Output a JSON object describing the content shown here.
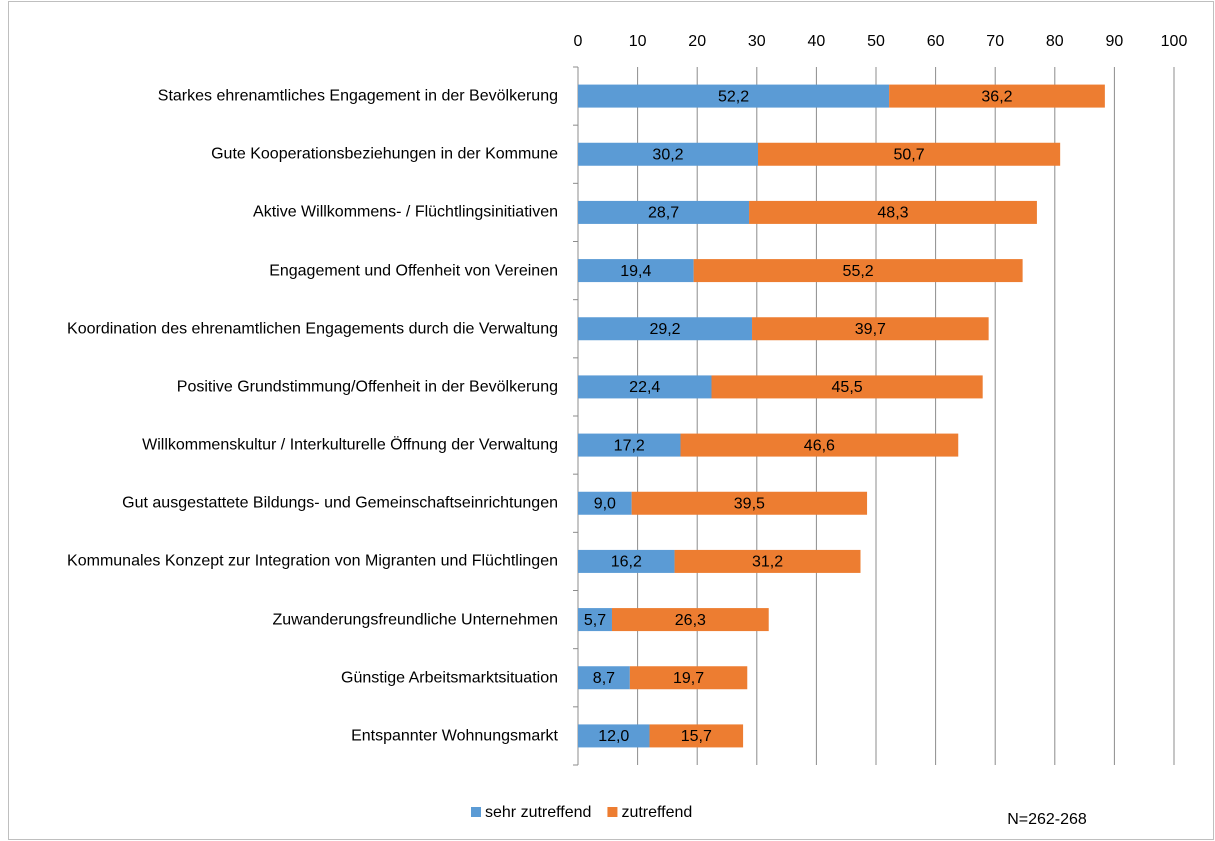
{
  "chart_data": {
    "type": "stacked_barh",
    "categories": [
      "Starkes ehrenamtliches Engagement in der Bevölkerung",
      "Gute Kooperationsbeziehungen in der Kommune",
      "Aktive Willkommens- / Flüchtlingsinitiativen",
      "Engagement und Offenheit von Vereinen",
      "Koordination des ehrenamtlichen Engagements durch die Verwaltung",
      "Positive Grundstimmung/Offenheit in der Bevölkerung",
      "Willkommenskultur / Interkulturelle Öffnung der Verwaltung",
      "Gut ausgestattete Bildungs- und Gemeinschaftseinrichtungen",
      "Kommunales Konzept zur Integration von Migranten und Flüchtlingen",
      "Zuwanderungsfreundliche Unternehmen",
      "Günstige Arbeitsmarktsituation",
      "Entspannter Wohnungsmarkt"
    ],
    "series": [
      {
        "name": "sehr zutreffend",
        "color": "#5b9bd5",
        "values": [
          52.2,
          30.2,
          28.7,
          19.4,
          29.2,
          22.4,
          17.2,
          9.0,
          16.2,
          5.7,
          8.7,
          12.0
        ],
        "value_labels": [
          "52,2",
          "30,2",
          "28,7",
          "19,4",
          "29,2",
          "22,4",
          "17,2",
          "9,0",
          "16,2",
          "5,7",
          "8,7",
          "12,0"
        ]
      },
      {
        "name": "zutreffend",
        "color": "#ed7d31",
        "values": [
          36.2,
          50.7,
          48.3,
          55.2,
          39.7,
          45.5,
          46.6,
          39.5,
          31.2,
          26.3,
          19.7,
          15.7
        ],
        "value_labels": [
          "36,2",
          "50,7",
          "48,3",
          "55,2",
          "39,7",
          "45,5",
          "46,6",
          "39,5",
          "31,2",
          "26,3",
          "19,7",
          "15,7"
        ]
      }
    ],
    "xlim": [
      0,
      100
    ],
    "xticks": [
      0,
      10,
      20,
      30,
      40,
      50,
      60,
      70,
      80,
      90,
      100
    ],
    "grid": true,
    "legend": "bottom",
    "annotation": "N=262-268"
  }
}
